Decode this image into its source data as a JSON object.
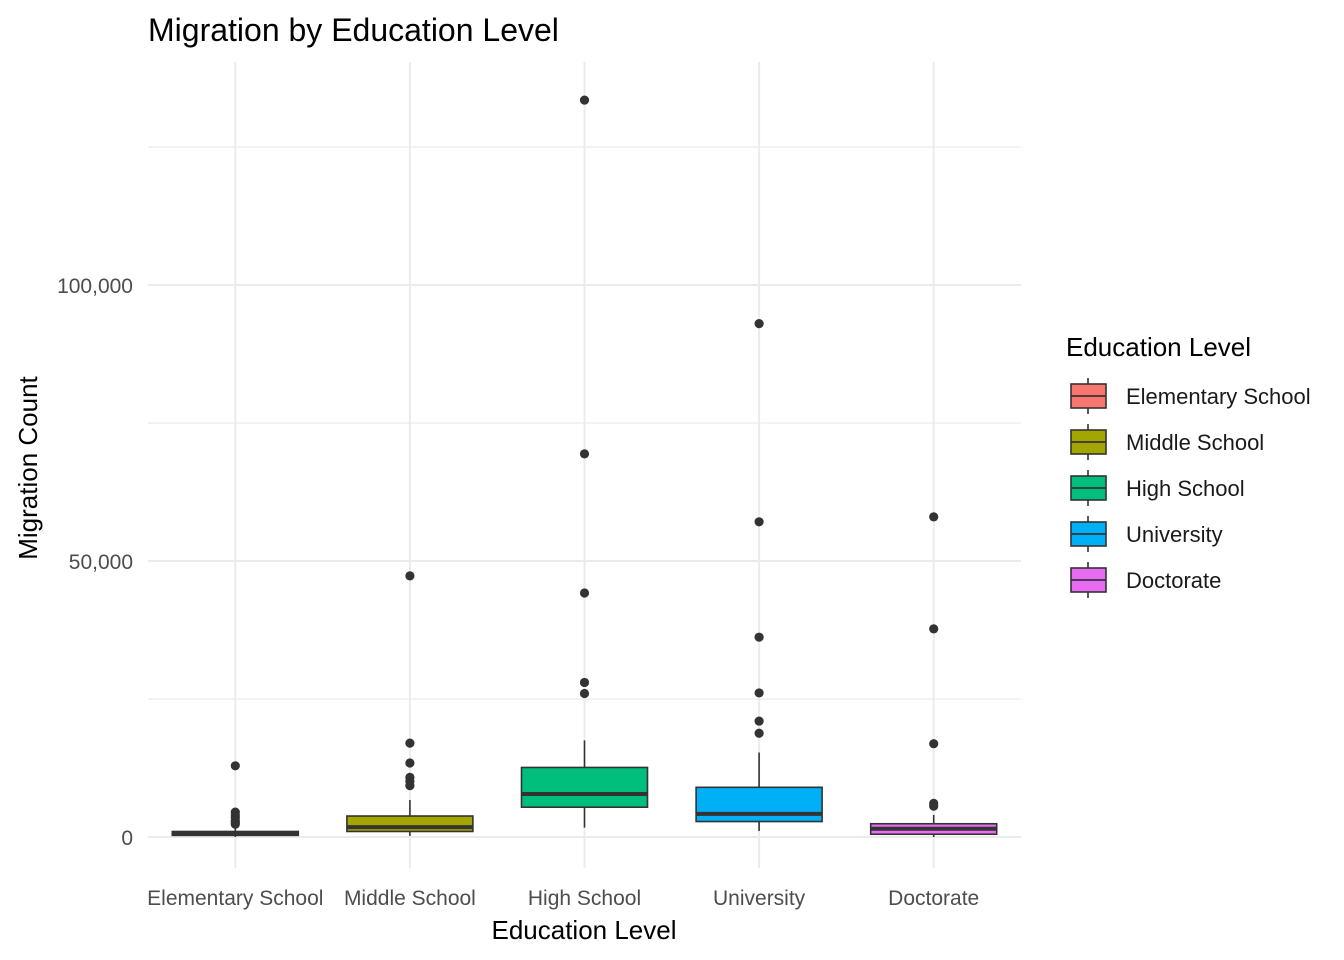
{
  "chart_data": {
    "type": "boxplot",
    "title": "Migration by Education Level",
    "xlabel": "Education Level",
    "ylabel": "Migration Count",
    "categories": [
      "Elementary School",
      "Middle School",
      "High School",
      "University",
      "Doctorate"
    ],
    "ylim": [
      -6000,
      140000
    ],
    "yticks": [
      0,
      50000,
      100000
    ],
    "ytick_labels": [
      "0",
      "50,000",
      "100,000"
    ],
    "grid": true,
    "legend": {
      "title": "Education Level",
      "placement": "right",
      "entries": [
        "Elementary School",
        "Middle School",
        "High School",
        "University",
        "Doctorate"
      ]
    },
    "colors": [
      "#F8766D",
      "#A3A500",
      "#00BF7D",
      "#00B0F6",
      "#E76BF3"
    ],
    "series": [
      {
        "category": "Elementary School",
        "whisker_low": 0,
        "q1": 300,
        "median": 600,
        "q3": 1000,
        "whisker_high": 2000,
        "outliers": [
          12900,
          4500,
          4000,
          3500,
          3000,
          2600,
          2300
        ]
      },
      {
        "category": "Middle School",
        "whisker_low": 200,
        "q1": 1000,
        "median": 1800,
        "q3": 3800,
        "whisker_high": 6700,
        "outliers": [
          47300,
          17000,
          13400,
          10800,
          10100,
          9300
        ]
      },
      {
        "category": "High School",
        "whisker_low": 1700,
        "q1": 5400,
        "median": 7800,
        "q3": 12600,
        "whisker_high": 17500,
        "outliers": [
          133500,
          69400,
          44200,
          28000,
          26000
        ]
      },
      {
        "category": "University",
        "whisker_low": 1100,
        "q1": 2800,
        "median": 4200,
        "q3": 9000,
        "whisker_high": 15300,
        "outliers": [
          93000,
          57100,
          36200,
          26100,
          21000,
          18800
        ]
      },
      {
        "category": "Doctorate",
        "whisker_low": 0,
        "q1": 500,
        "median": 1500,
        "q3": 2400,
        "whisker_high": 4000,
        "outliers": [
          58000,
          37700,
          16900,
          6100,
          5600
        ]
      }
    ]
  }
}
